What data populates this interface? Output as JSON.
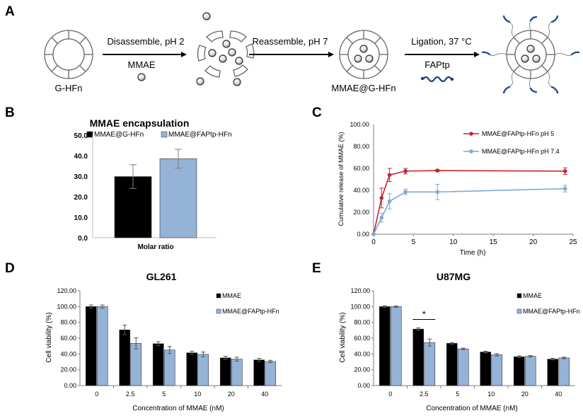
{
  "colors": {
    "black": "#000000",
    "blue": "#95b3d7",
    "red": "#c0262d",
    "lightblue": "#7fa8d8",
    "grey": "#7f7f7f"
  },
  "panel_a": {
    "letter": "A",
    "labels": {
      "ghfn": "G-HFn",
      "step1": "Disassemble, pH 2",
      "mmae": "MMAE",
      "step2": "Reassemble, pH 7",
      "mmae_ghfn": "MMAE@G-HFn",
      "step3": "Ligation, 37 °C",
      "faptp": "FAPtp"
    }
  },
  "chart_data": [
    {
      "panel": "B",
      "type": "bar",
      "title": "MMAE encapsulation",
      "xlabel": "Molar ratio",
      "ylabel": "",
      "ylim": [
        0,
        50
      ],
      "yticks": [
        "0.0",
        "10.0",
        "20.0",
        "30.0",
        "40.0",
        "50.0"
      ],
      "series": [
        {
          "name": "MMAE@G-HFn",
          "color": "#000000",
          "values": [
            29.8
          ],
          "errors": [
            5.8
          ]
        },
        {
          "name": "MMAE@FAPtp-HFn",
          "color": "#95b3d7",
          "values": [
            38.5
          ],
          "errors": [
            4.6
          ]
        }
      ],
      "legend": "top"
    },
    {
      "panel": "C",
      "type": "line",
      "xlabel": "Time (h)",
      "ylabel": "Cumulative release of MMAE (%)",
      "xlim": [
        0,
        25
      ],
      "ylim": [
        0,
        100
      ],
      "xticks": [
        "0",
        "5",
        "10",
        "15",
        "20",
        "25"
      ],
      "yticks": [
        "0.00",
        "20.00",
        "40.00",
        "60.00",
        "80.00",
        "100.00"
      ],
      "x": [
        0,
        1,
        2,
        4,
        8,
        24
      ],
      "series": [
        {
          "name": "MMAE@FAPtp-HFn pH 5",
          "color": "#c0262d",
          "values": [
            0,
            33,
            54,
            57.5,
            58,
            57.5
          ],
          "errors": [
            0,
            9,
            6,
            2.5,
            1,
            3
          ]
        },
        {
          "name": "MMAE@FAPtp-HFn pH 7.4",
          "color": "#7fa8d8",
          "values": [
            0,
            15,
            30,
            38.5,
            38.5,
            41.5
          ],
          "errors": [
            0,
            4,
            7,
            2.5,
            7,
            3
          ]
        }
      ],
      "legend": "top-right"
    },
    {
      "panel": "D",
      "type": "bar",
      "title": "GL261",
      "xlabel": "Concentration of MMAE (nM)",
      "ylabel": "Cell viability (%)",
      "ylim": [
        0,
        120
      ],
      "yticks": [
        "0.00",
        "20.00",
        "40.00",
        "60.00",
        "80.00",
        "100.00",
        "120.00"
      ],
      "categories": [
        "0",
        "2.5",
        "5",
        "10",
        "20",
        "40"
      ],
      "series": [
        {
          "name": "MMAE",
          "color": "#000000",
          "values": [
            100,
            70.5,
            53,
            41.5,
            35,
            32.5
          ],
          "errors": [
            2,
            6,
            2.5,
            2,
            2,
            2
          ]
        },
        {
          "name": "MMAE@FAPtp-HFn",
          "color": "#95b3d7",
          "values": [
            100,
            53.5,
            45,
            39.5,
            33.5,
            30.5
          ],
          "errors": [
            2,
            7,
            4.5,
            3,
            2.5,
            1.5
          ]
        }
      ],
      "legend": "right"
    },
    {
      "panel": "E",
      "type": "bar",
      "title": "U87MG",
      "xlabel": "Concentration of MMAE (nM)",
      "ylabel": "Cell viability (%)",
      "ylim": [
        0,
        120
      ],
      "yticks": [
        "0.00",
        "20.00",
        "40.00",
        "60.00",
        "80.00",
        "100.00",
        "120.00"
      ],
      "categories": [
        "0",
        "2.5",
        "5",
        "10",
        "20",
        "40"
      ],
      "series": [
        {
          "name": "MMAE",
          "color": "#000000",
          "values": [
            100,
            71.5,
            53.5,
            42.5,
            36.5,
            33.5
          ],
          "errors": [
            1,
            1.5,
            1,
            1,
            1,
            1
          ]
        },
        {
          "name": "MMAE@FAPtp-HFn",
          "color": "#95b3d7",
          "values": [
            100,
            54.5,
            46.5,
            39,
            37,
            35
          ],
          "errors": [
            1,
            4.5,
            1,
            1.5,
            1,
            1
          ]
        }
      ],
      "annotation": "*",
      "legend": "right"
    }
  ]
}
